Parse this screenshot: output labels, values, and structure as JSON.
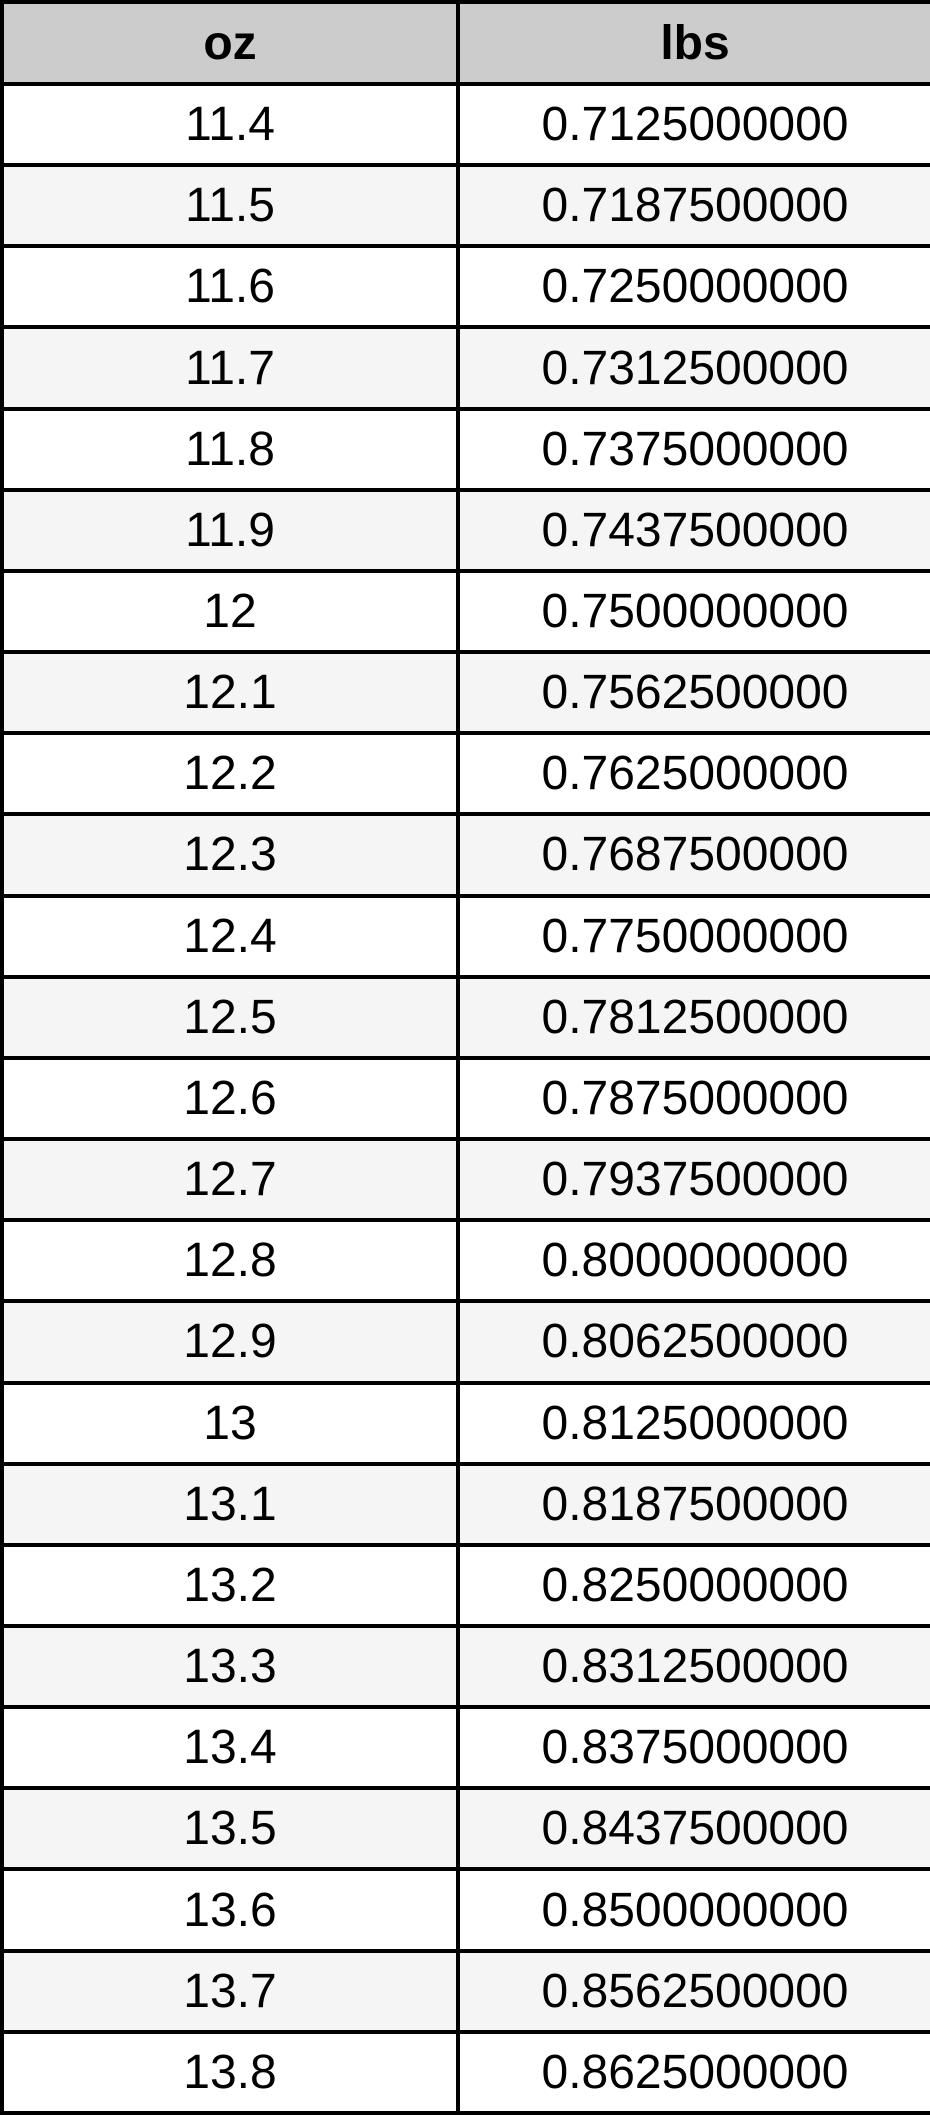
{
  "colors": {
    "border": "#000000",
    "header_bg": "#cccccc",
    "row_alt_bg": "#f5f5f5",
    "text": "#000000"
  },
  "chart_data": {
    "type": "table",
    "columns": [
      "oz",
      "lbs"
    ],
    "rows": [
      {
        "oz": "11.4",
        "lbs": "0.7125000000"
      },
      {
        "oz": "11.5",
        "lbs": "0.7187500000"
      },
      {
        "oz": "11.6",
        "lbs": "0.7250000000"
      },
      {
        "oz": "11.7",
        "lbs": "0.7312500000"
      },
      {
        "oz": "11.8",
        "lbs": "0.7375000000"
      },
      {
        "oz": "11.9",
        "lbs": "0.7437500000"
      },
      {
        "oz": "12",
        "lbs": "0.7500000000"
      },
      {
        "oz": "12.1",
        "lbs": "0.7562500000"
      },
      {
        "oz": "12.2",
        "lbs": "0.7625000000"
      },
      {
        "oz": "12.3",
        "lbs": "0.7687500000"
      },
      {
        "oz": "12.4",
        "lbs": "0.7750000000"
      },
      {
        "oz": "12.5",
        "lbs": "0.7812500000"
      },
      {
        "oz": "12.6",
        "lbs": "0.7875000000"
      },
      {
        "oz": "12.7",
        "lbs": "0.7937500000"
      },
      {
        "oz": "12.8",
        "lbs": "0.8000000000"
      },
      {
        "oz": "12.9",
        "lbs": "0.8062500000"
      },
      {
        "oz": "13",
        "lbs": "0.8125000000"
      },
      {
        "oz": "13.1",
        "lbs": "0.8187500000"
      },
      {
        "oz": "13.2",
        "lbs": "0.8250000000"
      },
      {
        "oz": "13.3",
        "lbs": "0.8312500000"
      },
      {
        "oz": "13.4",
        "lbs": "0.8375000000"
      },
      {
        "oz": "13.5",
        "lbs": "0.8437500000"
      },
      {
        "oz": "13.6",
        "lbs": "0.8500000000"
      },
      {
        "oz": "13.7",
        "lbs": "0.8562500000"
      },
      {
        "oz": "13.8",
        "lbs": "0.8625000000"
      }
    ]
  }
}
